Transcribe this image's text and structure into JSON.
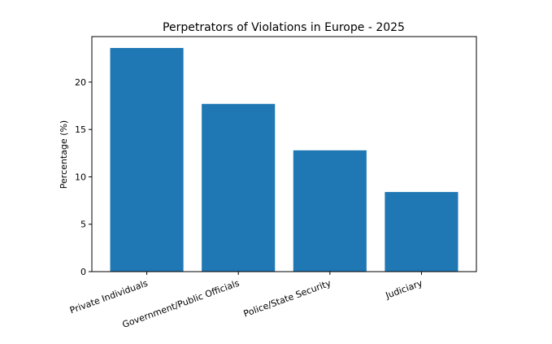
{
  "chart_data": {
    "type": "bar",
    "title": "Perpetrators of Violations in Europe - 2025",
    "xlabel": "",
    "ylabel": "Percentage (%)",
    "categories": [
      "Private Individuals",
      "Government/Public Officials",
      "Police/State Security",
      "Judiciary"
    ],
    "values": [
      23.6,
      17.7,
      12.8,
      8.4
    ],
    "ylim": [
      0,
      24.8
    ],
    "yticks": [
      0,
      5,
      10,
      15,
      20
    ],
    "grid": false,
    "bar_color": "#1f77b4",
    "xtick_rotation": "-20deg"
  }
}
